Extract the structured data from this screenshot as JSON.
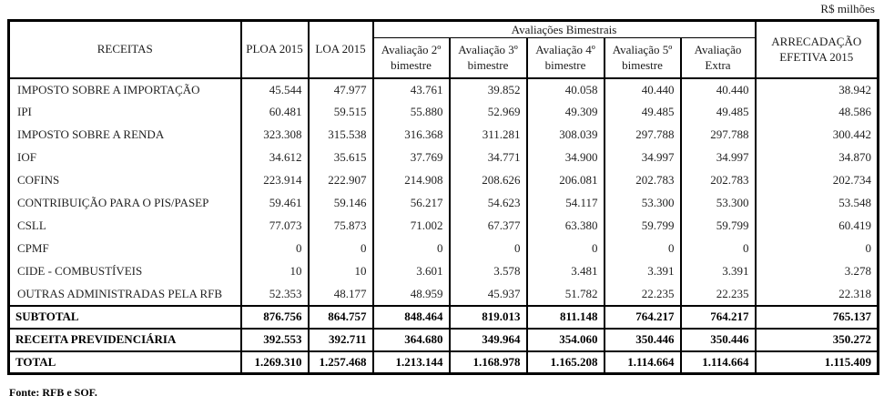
{
  "unit_note": "R$ milhões",
  "footnote": "Fonte: RFB e SOF.",
  "table": {
    "header": {
      "receitas": "RECEITAS",
      "ploa": "PLOA 2015",
      "loa": "LOA 2015",
      "avaliacoes_group": "Avaliações Bimestrais",
      "sub_columns": [
        {
          "line1": "Avaliação 2º",
          "line2": "bimestre"
        },
        {
          "line1": "Avaliação 3º",
          "line2": "bimestre"
        },
        {
          "line1": "Avaliação 4º",
          "line2": "bimestre"
        },
        {
          "line1": "Avaliação 5º",
          "line2": "bimestre"
        },
        {
          "line1": "Avaliação",
          "line2": "Extra"
        }
      ],
      "arrecadacao_line1": "ARRECADAÇÃO",
      "arrecadacao_line2": "EFETIVA 2015"
    },
    "rows": [
      {
        "label": "IMPOSTO SOBRE A IMPORTAÇÃO",
        "bold": false,
        "values": [
          "45.544",
          "47.977",
          "43.761",
          "39.852",
          "40.058",
          "40.440",
          "40.440",
          "38.942"
        ]
      },
      {
        "label": "IPI",
        "bold": false,
        "values": [
          "60.481",
          "59.515",
          "55.880",
          "52.969",
          "49.309",
          "49.485",
          "49.485",
          "48.586"
        ]
      },
      {
        "label": "IMPOSTO SOBRE A RENDA",
        "bold": false,
        "values": [
          "323.308",
          "315.538",
          "316.368",
          "311.281",
          "308.039",
          "297.788",
          "297.788",
          "300.442"
        ]
      },
      {
        "label": "IOF",
        "bold": false,
        "values": [
          "34.612",
          "35.615",
          "37.769",
          "34.771",
          "34.900",
          "34.997",
          "34.997",
          "34.870"
        ]
      },
      {
        "label": "COFINS",
        "bold": false,
        "values": [
          "223.914",
          "222.907",
          "214.908",
          "208.626",
          "206.081",
          "202.783",
          "202.783",
          "202.734"
        ]
      },
      {
        "label": "CONTRIBUIÇÃO PARA O PIS/PASEP",
        "bold": false,
        "values": [
          "59.461",
          "59.146",
          "56.217",
          "54.623",
          "54.117",
          "53.300",
          "53.300",
          "53.548"
        ]
      },
      {
        "label": "CSLL",
        "bold": false,
        "values": [
          "77.073",
          "75.873",
          "71.002",
          "67.377",
          "63.380",
          "59.799",
          "59.799",
          "60.419"
        ]
      },
      {
        "label": "CPMF",
        "bold": false,
        "values": [
          "0",
          "0",
          "0",
          "0",
          "0",
          "0",
          "0",
          "0"
        ]
      },
      {
        "label": "CIDE - COMBUSTÍVEIS",
        "bold": false,
        "values": [
          "10",
          "10",
          "3.601",
          "3.578",
          "3.481",
          "3.391",
          "3.391",
          "3.278"
        ]
      },
      {
        "label": "OUTRAS ADMINISTRADAS PELA RFB",
        "bold": false,
        "values": [
          "52.353",
          "48.177",
          "48.959",
          "45.937",
          "51.782",
          "22.235",
          "22.235",
          "22.318"
        ]
      },
      {
        "label": "SUBTOTAL",
        "bold": true,
        "values": [
          "876.756",
          "864.757",
          "848.464",
          "819.013",
          "811.148",
          "764.217",
          "764.217",
          "765.137"
        ]
      },
      {
        "label": "RECEITA PREVIDENCIÁRIA",
        "bold": true,
        "values": [
          "392.553",
          "392.711",
          "364.680",
          "349.964",
          "354.060",
          "350.446",
          "350.446",
          "350.272"
        ]
      },
      {
        "label": "TOTAL",
        "bold": true,
        "values": [
          "1.269.310",
          "1.257.468",
          "1.213.144",
          "1.168.978",
          "1.165.208",
          "1.114.664",
          "1.114.664",
          "1.115.409"
        ]
      }
    ]
  }
}
